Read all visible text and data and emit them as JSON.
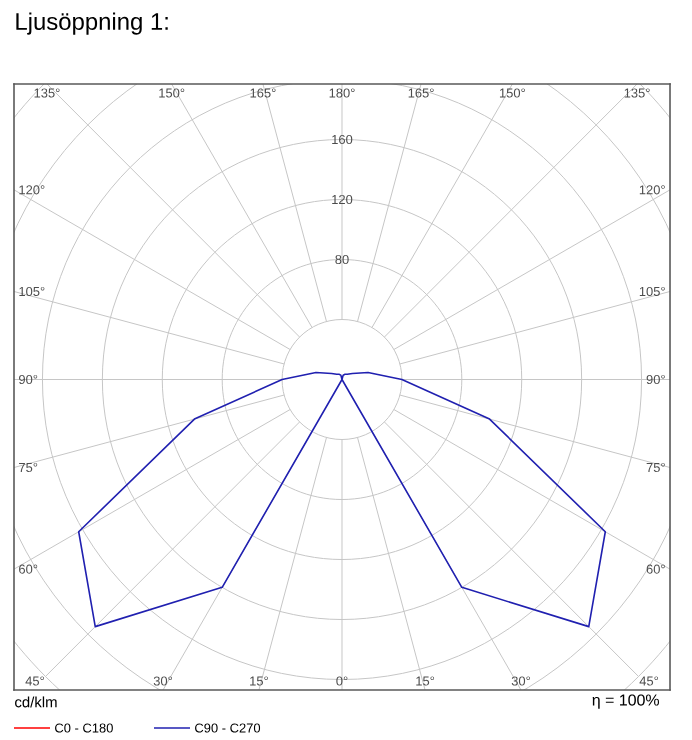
{
  "chart_data": {
    "type": "radar",
    "title": "Ljusöppning 1:",
    "ylabel": "cd/klm",
    "annotations": [
      "η = 100%"
    ],
    "categories": [
      "180°",
      "165°",
      "150°",
      "135°",
      "120°",
      "105°",
      "90°",
      "75°",
      "60°",
      "45°",
      "30°",
      "15°",
      "0°",
      "15°",
      "30°",
      "45°",
      "60°",
      "75°",
      "90°",
      "105°",
      "120°",
      "135°",
      "150°",
      "165°"
    ],
    "series": [
      {
        "name": "C90 - C270",
        "color": "#2020b0",
        "values": [
          0,
          3,
          4,
          5,
          8,
          18,
          40,
          102,
          203,
          233,
          160,
          0,
          0,
          0,
          160,
          233,
          203,
          102,
          40,
          18,
          8,
          5,
          4,
          3
        ]
      },
      {
        "name": "C0 - C180",
        "color": "#ff0000",
        "values": [
          null,
          null,
          null,
          null,
          null,
          null,
          null,
          null,
          null,
          null,
          null,
          null,
          null,
          null,
          null,
          null,
          null,
          null,
          null,
          null,
          null,
          null,
          null,
          null
        ]
      }
    ],
    "ylim": [
      0,
      280
    ],
    "yticks": [
      {
        "value": 80,
        "label": "80"
      },
      {
        "value": 120,
        "label": "120"
      },
      {
        "value": 160,
        "label": "160"
      }
    ],
    "grid": true,
    "legend": "bottom",
    "marker": "none",
    "line_style": "solid"
  }
}
